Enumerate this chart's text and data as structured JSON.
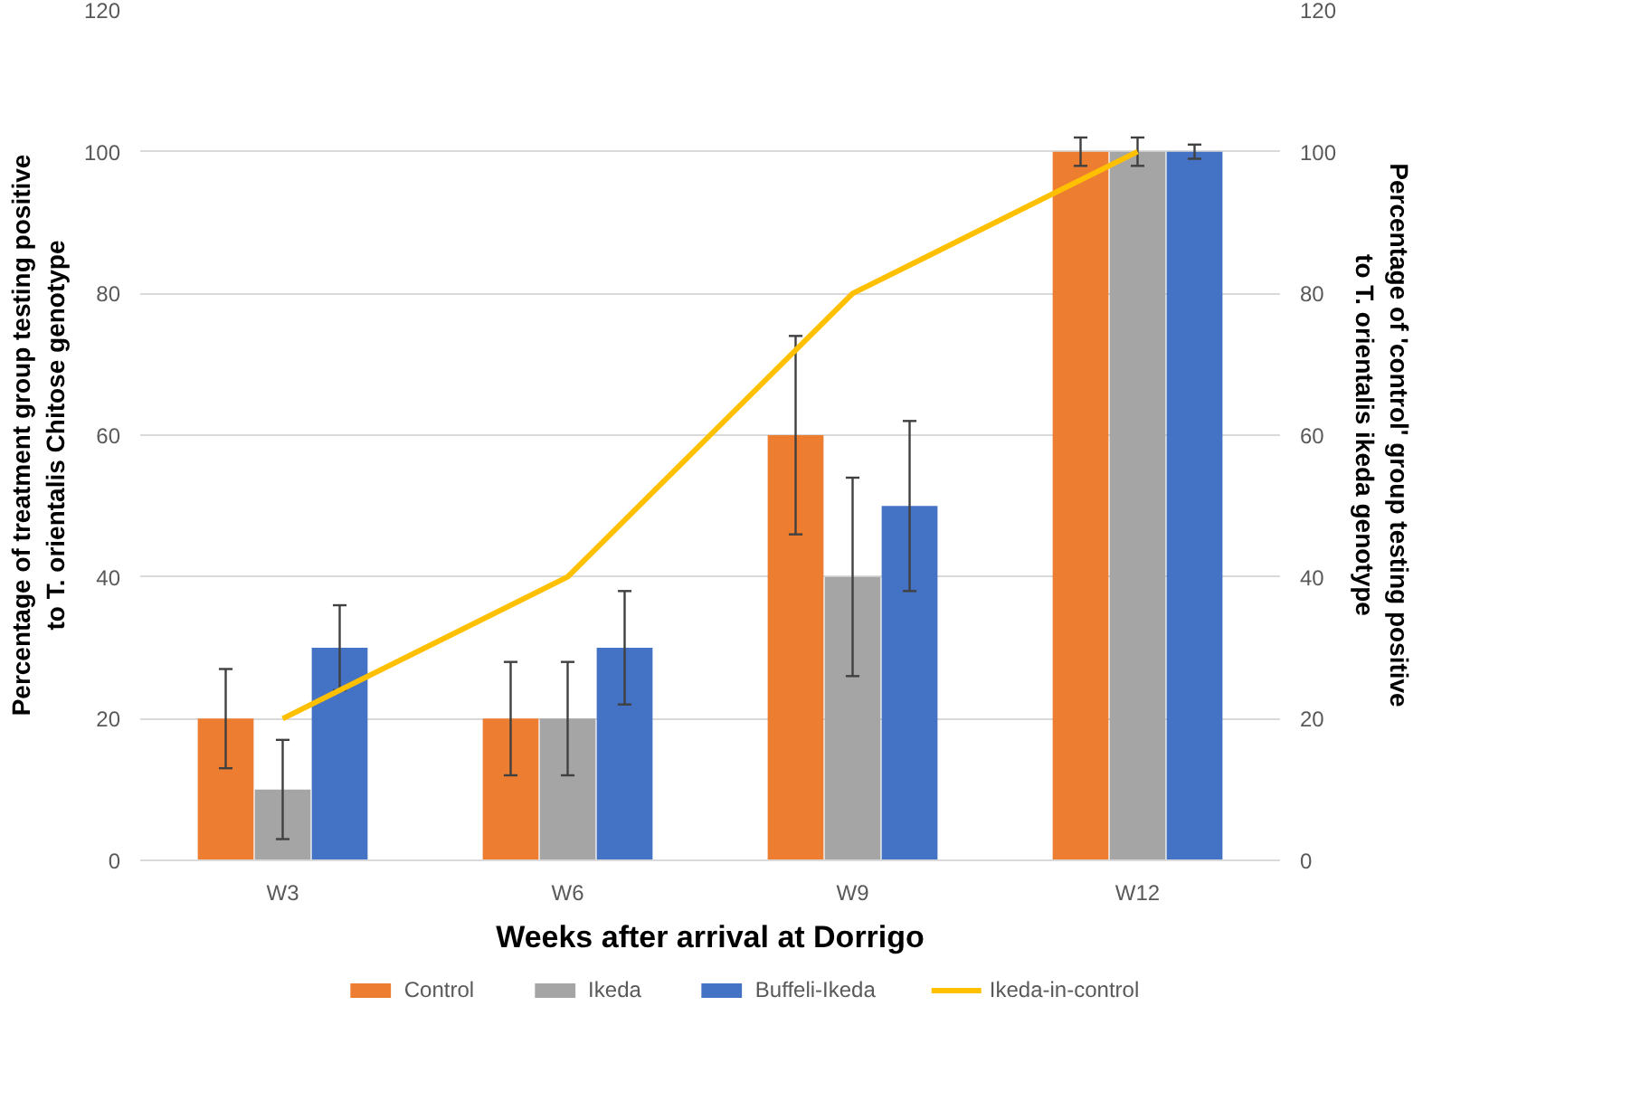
{
  "chart_data": {
    "type": "bar",
    "xlabel": "Weeks after arrival at Dorrigo",
    "ylabel": "Percentage of treatment group testing positive to T. orientalis Chitose genotype",
    "y2label": "Percentage of 'control' group testing positive to T. orientalis ikeda genotype",
    "categories": [
      "W3",
      "W6",
      "W9",
      "W12"
    ],
    "series": [
      {
        "name": "Control",
        "color": "#ed7d31",
        "values": [
          20,
          20,
          60,
          100
        ],
        "errors": [
          7,
          8,
          14,
          2
        ]
      },
      {
        "name": "Ikeda",
        "color": "#a5a5a5",
        "values": [
          10,
          20,
          40,
          100
        ],
        "errors": [
          7,
          8,
          14,
          2
        ]
      },
      {
        "name": "Buffeli-Ikeda",
        "color": "#4472c4",
        "values": [
          30,
          30,
          50,
          100
        ],
        "errors": [
          6,
          8,
          12,
          1
        ]
      },
      {
        "name": "Ikeda-in-control",
        "color": "#ffc000",
        "values": [
          20,
          40,
          80,
          100
        ],
        "type": "line",
        "axis": "y2"
      }
    ],
    "ylim": [
      0,
      120
    ],
    "yticks": [
      0,
      20,
      40,
      60,
      80,
      100,
      120
    ],
    "y2lim": [
      0,
      120
    ],
    "y2ticks": [
      0,
      20,
      40,
      60,
      80,
      100,
      120
    ],
    "grid": "y",
    "legend": "bottom"
  }
}
